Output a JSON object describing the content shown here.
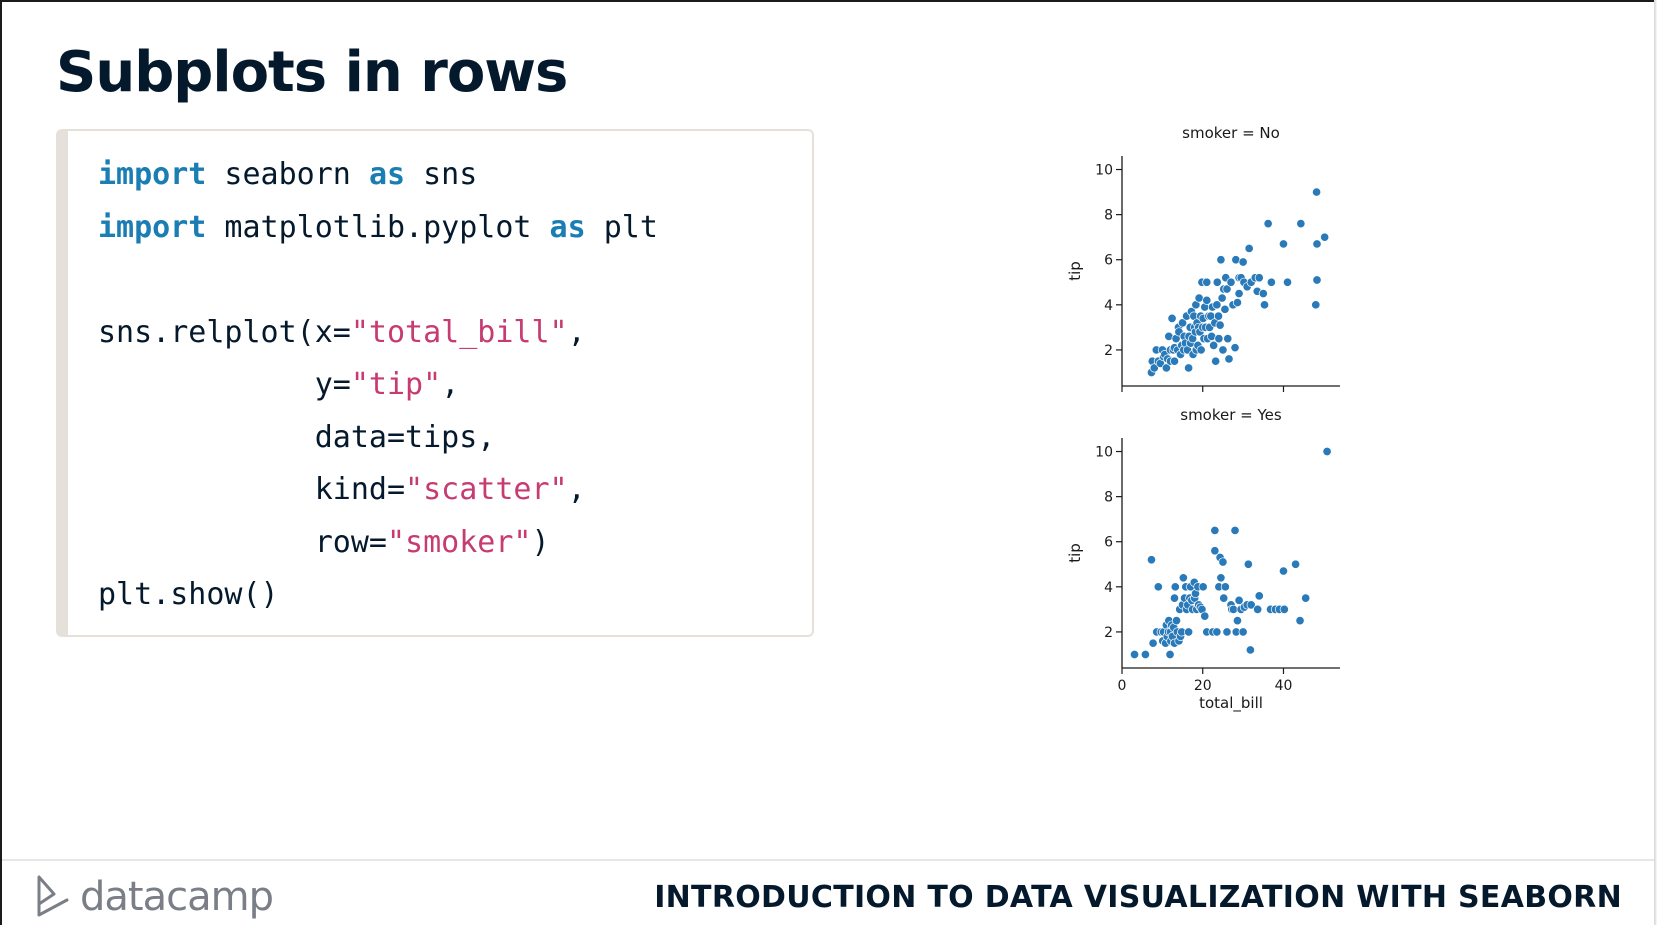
{
  "slide": {
    "title": "Subplots in rows",
    "course_title": "INTRODUCTION TO DATA VISUALIZATION WITH SEABORN",
    "logo_text": "datacamp",
    "logo_icon": "datacamp-logo-icon"
  },
  "code": {
    "lines": [
      [
        {
          "t": "import",
          "c": "kw"
        },
        {
          "t": " seaborn ",
          "c": ""
        },
        {
          "t": "as",
          "c": "kw"
        },
        {
          "t": " sns",
          "c": ""
        }
      ],
      [
        {
          "t": "import",
          "c": "kw"
        },
        {
          "t": " matplotlib.pyplot ",
          "c": ""
        },
        {
          "t": "as",
          "c": "kw"
        },
        {
          "t": " plt",
          "c": ""
        }
      ],
      [],
      [
        {
          "t": "sns.relplot(x=",
          "c": ""
        },
        {
          "t": "\"total_bill\"",
          "c": "str"
        },
        {
          "t": ",",
          "c": ""
        }
      ],
      [
        {
          "t": "            y=",
          "c": ""
        },
        {
          "t": "\"tip\"",
          "c": "str"
        },
        {
          "t": ",",
          "c": ""
        }
      ],
      [
        {
          "t": "            data=tips,",
          "c": ""
        }
      ],
      [
        {
          "t": "            kind=",
          "c": ""
        },
        {
          "t": "\"scatter\"",
          "c": "str"
        },
        {
          "t": ",",
          "c": ""
        }
      ],
      [
        {
          "t": "            row=",
          "c": ""
        },
        {
          "t": "\"smoker\"",
          "c": "str"
        },
        {
          "t": ")",
          "c": ""
        }
      ],
      [
        {
          "t": "plt.show()",
          "c": ""
        }
      ]
    ],
    "colors": {
      "keyword": "#1a7db4",
      "string": "#c73a72",
      "text": "#05192d"
    }
  },
  "chart_data": [
    {
      "type": "scatter",
      "title": "smoker = No",
      "xlabel": "",
      "ylabel": "tip",
      "xlim": [
        0,
        54
      ],
      "ylim": [
        0.4,
        10.6
      ],
      "xticks": [
        0,
        20,
        40
      ],
      "yticks": [
        2,
        4,
        6,
        8,
        10
      ],
      "xtick_labels_shown": false,
      "grid": false,
      "color": "#2a7ab9",
      "points": [
        [
          7.3,
          1
        ],
        [
          7.5,
          1.5
        ],
        [
          8,
          1.2
        ],
        [
          8.5,
          2
        ],
        [
          9,
          1.5
        ],
        [
          9.5,
          1.4
        ],
        [
          10,
          2
        ],
        [
          10.3,
          1.7
        ],
        [
          10.6,
          1.8
        ],
        [
          11,
          1.2
        ],
        [
          11.3,
          1.6
        ],
        [
          11.6,
          2.6
        ],
        [
          12,
          2
        ],
        [
          12,
          1.5
        ],
        [
          12.4,
          3.4
        ],
        [
          12.7,
          2
        ],
        [
          13,
          2.1
        ],
        [
          13,
          1.5
        ],
        [
          13.4,
          2.5
        ],
        [
          13.8,
          2
        ],
        [
          14,
          3
        ],
        [
          14.1,
          2.8
        ],
        [
          14.5,
          1.8
        ],
        [
          14.8,
          2.2
        ],
        [
          15,
          3.2
        ],
        [
          15.3,
          2
        ],
        [
          15.4,
          2.6
        ],
        [
          15.7,
          2.3
        ],
        [
          16,
          3.5
        ],
        [
          16.2,
          2
        ],
        [
          16.5,
          1.2
        ],
        [
          16.6,
          2.6
        ],
        [
          16.9,
          3
        ],
        [
          17,
          2.3
        ],
        [
          17.2,
          3.7
        ],
        [
          17.5,
          2.5
        ],
        [
          17.6,
          1.8
        ],
        [
          17.8,
          3.5
        ],
        [
          18,
          3
        ],
        [
          18.2,
          2.8
        ],
        [
          18.3,
          4
        ],
        [
          18.4,
          2
        ],
        [
          18.6,
          3.2
        ],
        [
          18.8,
          2.2
        ],
        [
          19,
          3
        ],
        [
          19.1,
          4.3
        ],
        [
          19.3,
          2.8
        ],
        [
          19.5,
          3.5
        ],
        [
          19.6,
          2
        ],
        [
          19.8,
          5
        ],
        [
          20,
          3
        ],
        [
          20.1,
          3.4
        ],
        [
          20.3,
          2.5
        ],
        [
          20.5,
          3.9
        ],
        [
          20.7,
          3
        ],
        [
          21,
          4.2
        ],
        [
          21,
          5
        ],
        [
          21.2,
          2.5
        ],
        [
          21.5,
          3.5
        ],
        [
          21.7,
          3
        ],
        [
          22,
          3.5
        ],
        [
          22.2,
          2.6
        ],
        [
          22.4,
          3.9
        ],
        [
          22.7,
          2.2
        ],
        [
          23,
          3.2
        ],
        [
          23.2,
          1.5
        ],
        [
          23.5,
          4
        ],
        [
          23.6,
          5
        ],
        [
          23.9,
          3.5
        ],
        [
          24,
          2.5
        ],
        [
          24.3,
          3.1
        ],
        [
          24.5,
          6
        ],
        [
          24.8,
          4.3
        ],
        [
          25,
          2
        ],
        [
          25.2,
          4.7
        ],
        [
          25.5,
          3.8
        ],
        [
          25.7,
          5.2
        ],
        [
          26,
          4.7
        ],
        [
          26.2,
          2.5
        ],
        [
          26.5,
          1.6
        ],
        [
          27,
          5
        ],
        [
          27.5,
          4
        ],
        [
          28,
          2.1
        ],
        [
          28.2,
          6
        ],
        [
          28.6,
          4.1
        ],
        [
          29,
          5.2
        ],
        [
          29,
          4.5
        ],
        [
          29.5,
          5.2
        ],
        [
          30,
          5.9
        ],
        [
          30.2,
          5
        ],
        [
          31,
          4.8
        ],
        [
          31.5,
          6.5
        ],
        [
          32,
          5
        ],
        [
          33,
          5.2
        ],
        [
          33.5,
          4.6
        ],
        [
          34,
          5.2
        ],
        [
          35,
          4.5
        ],
        [
          35.3,
          4
        ],
        [
          36.2,
          7.6
        ],
        [
          37,
          5
        ],
        [
          40,
          6.7
        ],
        [
          41,
          5
        ],
        [
          44.3,
          7.6
        ],
        [
          48,
          4
        ],
        [
          48.2,
          9
        ],
        [
          48.3,
          6.7
        ],
        [
          48.3,
          5.1
        ],
        [
          50.2,
          7
        ]
      ]
    },
    {
      "type": "scatter",
      "title": "smoker = Yes",
      "xlabel": "total_bill",
      "ylabel": "tip",
      "xlim": [
        0,
        54
      ],
      "ylim": [
        0.4,
        10.6
      ],
      "xticks": [
        0,
        20,
        40
      ],
      "yticks": [
        2,
        4,
        6,
        8,
        10
      ],
      "grid": false,
      "color": "#2a7ab9",
      "points": [
        [
          3.1,
          1
        ],
        [
          5.8,
          1
        ],
        [
          7.3,
          5.2
        ],
        [
          7.7,
          1.5
        ],
        [
          8.6,
          2
        ],
        [
          9,
          4
        ],
        [
          9.7,
          2
        ],
        [
          10.1,
          1.6
        ],
        [
          10.3,
          2
        ],
        [
          10.8,
          1.5
        ],
        [
          11,
          2.3
        ],
        [
          11.2,
          1.8
        ],
        [
          11.5,
          2
        ],
        [
          11.6,
          2.5
        ],
        [
          11.9,
          1
        ],
        [
          12,
          2
        ],
        [
          12.1,
          1.6
        ],
        [
          12.3,
          2.3
        ],
        [
          12.5,
          1.8
        ],
        [
          12.8,
          2.2
        ],
        [
          13,
          3.5
        ],
        [
          13,
          1.5
        ],
        [
          13.2,
          4
        ],
        [
          13.5,
          2.5
        ],
        [
          13.7,
          2
        ],
        [
          14.1,
          1.6
        ],
        [
          14.3,
          3
        ],
        [
          14.5,
          1.8
        ],
        [
          14.8,
          2
        ],
        [
          15,
          3.2
        ],
        [
          15.2,
          4.4
        ],
        [
          15.5,
          3.5
        ],
        [
          15.8,
          4
        ],
        [
          16,
          3
        ],
        [
          16.3,
          3.2
        ],
        [
          16.5,
          2
        ],
        [
          16.8,
          3.5
        ],
        [
          17,
          4
        ],
        [
          17.3,
          3.4
        ],
        [
          17.5,
          3
        ],
        [
          17.9,
          4.2
        ],
        [
          18,
          3.5
        ],
        [
          18.2,
          3.7
        ],
        [
          18.5,
          3
        ],
        [
          18.8,
          4
        ],
        [
          19,
          3.2
        ],
        [
          19.4,
          3.1
        ],
        [
          19.8,
          3
        ],
        [
          20.1,
          4
        ],
        [
          20.5,
          2.7
        ],
        [
          21,
          2
        ],
        [
          22.5,
          2
        ],
        [
          23,
          6.5
        ],
        [
          23,
          5.6
        ],
        [
          23.5,
          2
        ],
        [
          24,
          4
        ],
        [
          24.3,
          5.3
        ],
        [
          24.5,
          4.4
        ],
        [
          25,
          5.1
        ],
        [
          25.2,
          3.5
        ],
        [
          25.6,
          4
        ],
        [
          26,
          2
        ],
        [
          27,
          3.2
        ],
        [
          27.2,
          3
        ],
        [
          27.6,
          3
        ],
        [
          28,
          6.5
        ],
        [
          28.3,
          2
        ],
        [
          28.6,
          2.5
        ],
        [
          29,
          3.4
        ],
        [
          29.5,
          3
        ],
        [
          30,
          2
        ],
        [
          30.3,
          3.1
        ],
        [
          31,
          3.2
        ],
        [
          31.3,
          5
        ],
        [
          31.8,
          1.2
        ],
        [
          32,
          3.2
        ],
        [
          33.6,
          3
        ],
        [
          34,
          3.6
        ],
        [
          36.8,
          3
        ],
        [
          38,
          3
        ],
        [
          39,
          3
        ],
        [
          40,
          4.7
        ],
        [
          40.2,
          3
        ],
        [
          43,
          5
        ],
        [
          44.1,
          2.5
        ],
        [
          45.5,
          3.5
        ],
        [
          50.8,
          10
        ]
      ]
    }
  ]
}
